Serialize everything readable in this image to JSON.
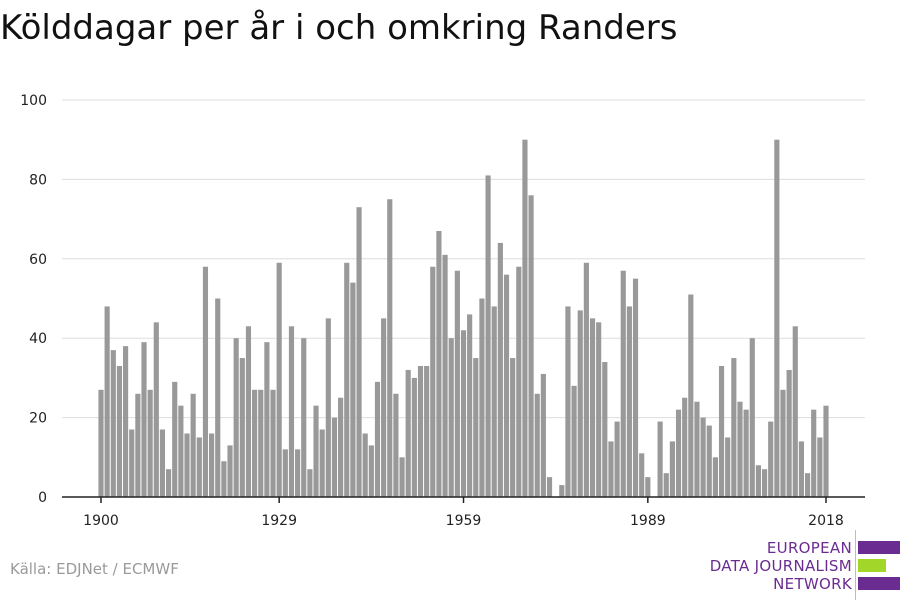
{
  "chart_data": {
    "type": "bar",
    "title": "Kölddagar per år i och omkring Randers",
    "xlabel": "",
    "ylabel": "",
    "x_start": 1900,
    "x_end": 2018,
    "xticks": [
      "1900",
      "1929",
      "1959",
      "1989",
      "2018"
    ],
    "yticks": [
      "0",
      "20",
      "40",
      "60",
      "80",
      "100"
    ],
    "ylim": [
      0,
      100
    ],
    "grid": true,
    "bar_color": "#999999",
    "values": [
      27,
      48,
      37,
      33,
      38,
      17,
      26,
      39,
      27,
      44,
      17,
      7,
      29,
      23,
      16,
      26,
      15,
      58,
      16,
      50,
      9,
      13,
      40,
      35,
      43,
      27,
      27,
      39,
      27,
      59,
      12,
      43,
      12,
      40,
      7,
      23,
      17,
      45,
      20,
      25,
      59,
      54,
      73,
      16,
      13,
      29,
      45,
      75,
      26,
      10,
      32,
      30,
      33,
      33,
      58,
      67,
      61,
      40,
      57,
      42,
      46,
      35,
      50,
      81,
      48,
      64,
      56,
      35,
      58,
      90,
      76,
      26,
      31,
      5,
      0,
      3,
      48,
      28,
      47,
      59,
      45,
      44,
      34,
      14,
      19,
      57,
      48,
      55,
      11,
      5,
      0,
      19,
      6,
      14,
      22,
      25,
      51,
      24,
      20,
      18,
      10,
      33,
      15,
      35,
      24,
      22,
      40,
      8,
      7,
      19,
      90,
      27,
      32,
      43,
      14,
      6,
      22,
      15,
      23
    ]
  },
  "source": "Källa: EDJNet / ECMWF",
  "logo": {
    "lines": [
      "EUROPEAN",
      "DATA JOURNALISM",
      "NETWORK"
    ],
    "colors": {
      "purple": "#6b2c91",
      "green": "#a2d729"
    }
  }
}
